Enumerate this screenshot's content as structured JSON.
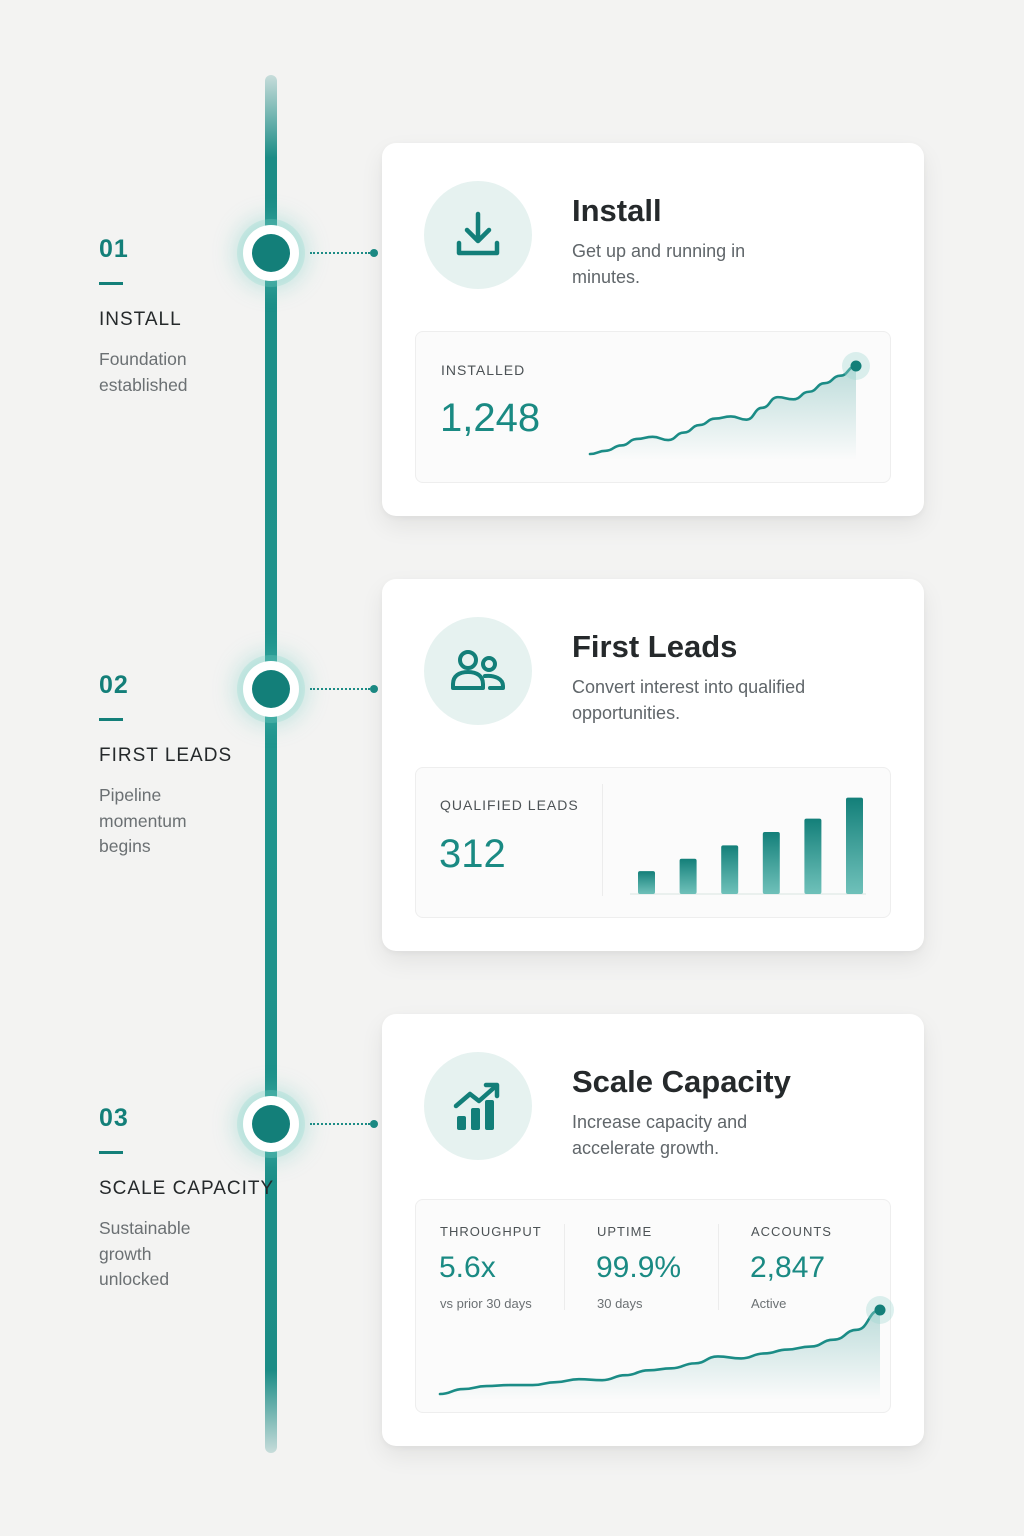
{
  "steps": [
    {
      "num": "01",
      "title": "INSTALL",
      "sub": "Foundation established"
    },
    {
      "num": "02",
      "title": "FIRST LEADS",
      "sub": "Pipeline momentum begins"
    },
    {
      "num": "03",
      "title": "SCALE CAPACITY",
      "sub": "Sustainable growth unlocked"
    }
  ],
  "cards": {
    "install": {
      "icon": "download-icon",
      "title": "Install",
      "desc": "Get up and running in minutes.",
      "metric_label": "INSTALLED",
      "metric_value": "1,248"
    },
    "leads": {
      "icon": "users-icon",
      "title": "First Leads",
      "desc": "Convert interest into qualified opportunities.",
      "metric_label": "QUALIFIED LEADS",
      "metric_value": "312"
    },
    "scale": {
      "icon": "growth-chart-icon",
      "title": "Scale Capacity",
      "desc": "Increase capacity and accelerate growth.",
      "metrics": [
        {
          "label": "THROUGHPUT",
          "value": "5.6x",
          "note": "vs prior 30 days"
        },
        {
          "label": "UPTIME",
          "value": "99.9%",
          "note": "30 days"
        },
        {
          "label": "ACCOUNTS",
          "value": "2,847",
          "note": "Active"
        }
      ]
    }
  },
  "colors": {
    "accent": "#137f79",
    "accent_light": "#e6f2f0",
    "background": "#f3f3f2"
  },
  "chart_data": [
    {
      "type": "area",
      "title": "",
      "x": [
        1,
        2,
        3,
        4,
        5,
        6,
        7,
        8,
        9,
        10,
        11,
        12,
        13,
        14,
        15,
        16,
        17,
        18
      ],
      "values": [
        0,
        3,
        8,
        14,
        16,
        13,
        20,
        27,
        33,
        35,
        32,
        43,
        53,
        51,
        58,
        66,
        73,
        82
      ]
    },
    {
      "type": "bar",
      "title": "",
      "categories": [
        "1",
        "2",
        "3",
        "4",
        "5",
        "6"
      ],
      "values": [
        24,
        37,
        51,
        65,
        79,
        101
      ]
    },
    {
      "type": "area",
      "title": "",
      "x": [
        1,
        2,
        3,
        4,
        5,
        6,
        7,
        8,
        9,
        10,
        11,
        12,
        13,
        14,
        15,
        16,
        17,
        18,
        19,
        20
      ],
      "values": [
        0,
        5,
        8,
        9,
        9,
        12,
        15,
        14,
        19,
        24,
        26,
        31,
        38,
        36,
        41,
        45,
        48,
        55,
        65,
        85
      ]
    }
  ]
}
